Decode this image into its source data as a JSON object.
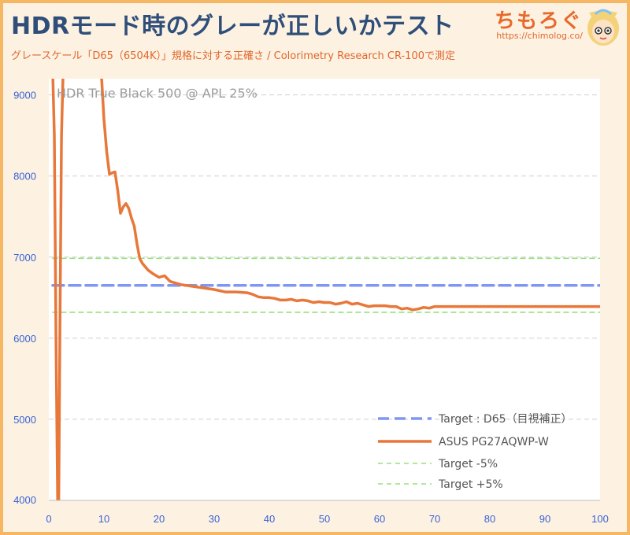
{
  "header": {
    "title": "HDRモード時のグレーが正しいかテスト",
    "subtitle": "グレースケール「D65（6504K）」規格に対する正確さ / Colorimetry Research CR-100で測定",
    "logo_name": "ちもろぐ",
    "logo_url": "https://chimolog.co/"
  },
  "colors": {
    "background": "#fdf2e2",
    "frame": "#f6b765",
    "measured": "#e8773a",
    "target": "#7f97f0",
    "tolerance": "#95e07b",
    "axis_tick": "#3a62d6",
    "grid": "#cfcfcf"
  },
  "chart_data": {
    "type": "line",
    "title": "HDR True Black 500 @ APL 25%",
    "xlim": [
      0,
      100
    ],
    "ylim": [
      4000,
      9200
    ],
    "x_ticks": [
      0,
      10,
      20,
      30,
      40,
      50,
      60,
      70,
      80,
      90,
      100
    ],
    "y_ticks": [
      4000,
      5000,
      6000,
      7000,
      8000,
      9000
    ],
    "grid": "horizontal dashed",
    "legend_position": "bottom-right",
    "series": [
      {
        "name": "Target : D65（目視補正）",
        "style": "dashed",
        "x": [
          0.7,
          100
        ],
        "y": [
          6650,
          6650
        ]
      },
      {
        "name": "ASUS PG27AQWP-W",
        "style": "solid",
        "x": [
          0.7,
          1.0,
          1.3,
          1.6,
          1.8,
          2.0,
          2.3,
          2.6,
          9.5,
          10.0,
          10.5,
          11.0,
          11.5,
          12.0,
          12.5,
          13.0,
          13.5,
          14.0,
          14.5,
          15.0,
          15.5,
          16.0,
          16.5,
          17.0,
          18.0,
          19.0,
          20.0,
          21.0,
          22.0,
          23.0,
          24.0,
          25.0,
          26.0,
          28.0,
          30.0,
          32.0,
          34.0,
          36.0,
          37.0,
          38.0,
          39.0,
          40.0,
          41.0,
          42.0,
          43.0,
          44.0,
          45.0,
          46.0,
          47.0,
          48.0,
          49.0,
          50.0,
          51.0,
          52.0,
          53.0,
          54.0,
          55.0,
          56.0,
          57.0,
          58.0,
          59.0,
          60.0,
          61.0,
          62.0,
          63.0,
          64.0,
          65.0,
          66.0,
          67.0,
          68.0,
          69.0,
          70.0,
          72.0,
          75.0,
          80.0,
          85.0,
          90.0,
          95.0,
          100.0
        ],
        "y": [
          9300,
          8500,
          6000,
          4000,
          4000,
          6000,
          8500,
          9300,
          9300,
          8700,
          8300,
          8020,
          8040,
          8050,
          7820,
          7540,
          7620,
          7660,
          7600,
          7480,
          7380,
          7160,
          6980,
          6920,
          6840,
          6790,
          6750,
          6770,
          6700,
          6680,
          6660,
          6650,
          6640,
          6620,
          6600,
          6570,
          6570,
          6560,
          6540,
          6510,
          6500,
          6500,
          6490,
          6470,
          6470,
          6480,
          6460,
          6470,
          6460,
          6440,
          6450,
          6440,
          6440,
          6420,
          6430,
          6450,
          6420,
          6430,
          6410,
          6390,
          6400,
          6400,
          6400,
          6390,
          6390,
          6360,
          6370,
          6350,
          6360,
          6380,
          6370,
          6390,
          6390,
          6390,
          6390,
          6390,
          6390,
          6390,
          6390
        ]
      },
      {
        "name": "Target -5%",
        "style": "dashed",
        "x": [
          0.7,
          100
        ],
        "y": [
          6320,
          6320
        ]
      },
      {
        "name": "Target +5%",
        "style": "dashed",
        "x": [
          0.7,
          100
        ],
        "y": [
          6985,
          6985
        ]
      }
    ]
  }
}
